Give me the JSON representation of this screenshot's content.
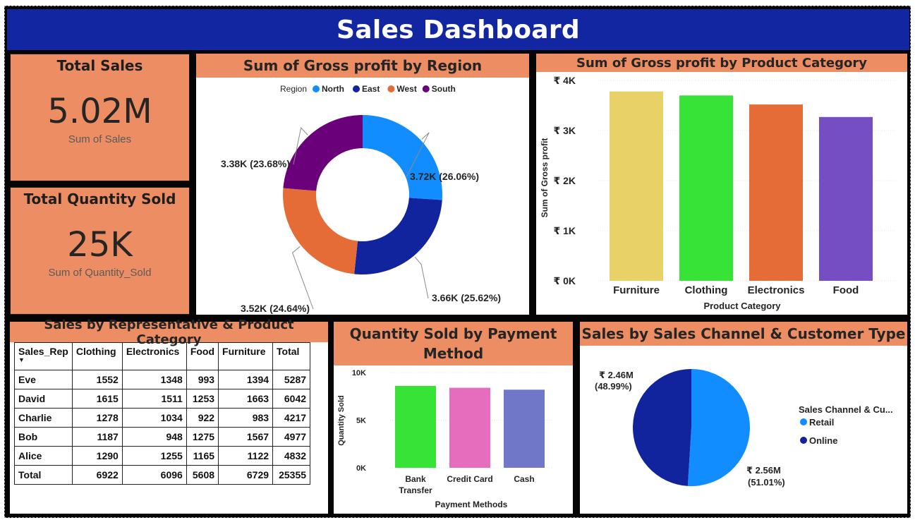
{
  "dashboard": {
    "title": "Sales Dashboard",
    "colors": {
      "banner": "#1226a1",
      "panel_header": "#ec8d63",
      "frame": "#050505"
    }
  },
  "kpis": {
    "total_sales": {
      "title": "Total Sales",
      "value": "5.02M",
      "caption": "Sum of Sales"
    },
    "total_quantity": {
      "title": "Total Quantity Sold",
      "value": "25K",
      "caption": "Sum of Quantity_Sold"
    }
  },
  "region_donut": {
    "title": "Sum of Gross profit by Region",
    "legend_title": "Region",
    "slice_labels": [
      "3.72K (26.06%)",
      "3.66K (25.62%)",
      "3.52K (24.64%)",
      "3.38K (23.68%)"
    ]
  },
  "category_bar": {
    "title": "Sum of Gross profit by Product Category",
    "y_ticks": [
      "₹ 4K",
      "₹ 3K",
      "₹ 2K",
      "₹ 1K",
      "₹ 0K"
    ],
    "ylabel": "Sum of Gross profit",
    "xlabel": "Product Category"
  },
  "rep_matrix": {
    "title": "Sales by Representative & Product Category",
    "columns": [
      "Sales_Rep",
      "Clothing",
      "Electronics",
      "Food",
      "Furniture",
      "Total"
    ],
    "rows": [
      [
        "Eve",
        "1552",
        "1348",
        "993",
        "1394",
        "5287"
      ],
      [
        "David",
        "1615",
        "1511",
        "1253",
        "1663",
        "6042"
      ],
      [
        "Charlie",
        "1278",
        "1034",
        "922",
        "983",
        "4217"
      ],
      [
        "Bob",
        "1187",
        "948",
        "1275",
        "1567",
        "4977"
      ],
      [
        "Alice",
        "1290",
        "1255",
        "1165",
        "1122",
        "4832"
      ],
      [
        "Total",
        "6922",
        "6096",
        "5608",
        "6729",
        "25355"
      ]
    ]
  },
  "payment_bar": {
    "title": "Quantity Sold by Payment Method",
    "y_ticks": [
      "10K",
      "5K",
      "0K"
    ],
    "ylabel": "Quantity Sold",
    "xlabel": "Payment Methods"
  },
  "channel_pie": {
    "title": "Sales by Sales Channel & Customer Type",
    "legend_title": "Sales Channel & Cu...",
    "slice_labels": [
      {
        "value": "₹ 2.56M",
        "pct": "(51.01%)"
      },
      {
        "value": "₹ 2.46M",
        "pct": "(48.99%)"
      }
    ]
  },
  "chart_data": [
    {
      "type": "pie",
      "title": "Sum of Gross profit by Region",
      "legend_title": "Region",
      "donut": true,
      "legend_position": "top",
      "categories": [
        "North",
        "East",
        "West",
        "South"
      ],
      "values": [
        3720,
        3660,
        3520,
        3380
      ],
      "percents": [
        26.06,
        25.62,
        24.64,
        23.68
      ],
      "colors": [
        "#118dff",
        "#12239e",
        "#e66c37",
        "#6b007b"
      ]
    },
    {
      "type": "bar",
      "title": "Sum of Gross profit by Product Category",
      "categories": [
        "Furniture",
        "Clothing",
        "Electronics",
        "Food"
      ],
      "values": [
        3780,
        3700,
        3520,
        3270
      ],
      "colors": [
        "#e8d166",
        "#37e337",
        "#e66c37",
        "#744ec2"
      ],
      "xlabel": "Product Category",
      "ylabel": "Sum of Gross profit",
      "ylim": [
        0,
        4000
      ],
      "grid": true
    },
    {
      "type": "bar",
      "title": "Quantity Sold by Payment Method",
      "categories": [
        "Bank Transfer",
        "Credit Card",
        "Cash"
      ],
      "values": [
        8600,
        8400,
        8200
      ],
      "colors": [
        "#37e337",
        "#e66cbd",
        "#7077c8"
      ],
      "xlabel": "Payment Methods",
      "ylabel": "Quantity Sold",
      "ylim": [
        0,
        10000
      ],
      "grid": true
    },
    {
      "type": "pie",
      "title": "Sales by Sales Channel & Customer Type",
      "legend_title": "Sales Channel & Cu...",
      "legend_position": "right",
      "categories": [
        "Retail",
        "Online"
      ],
      "values": [
        2560000,
        2460000
      ],
      "percents": [
        51.01,
        48.99
      ],
      "colors": [
        "#118dff",
        "#12239e"
      ]
    }
  ]
}
